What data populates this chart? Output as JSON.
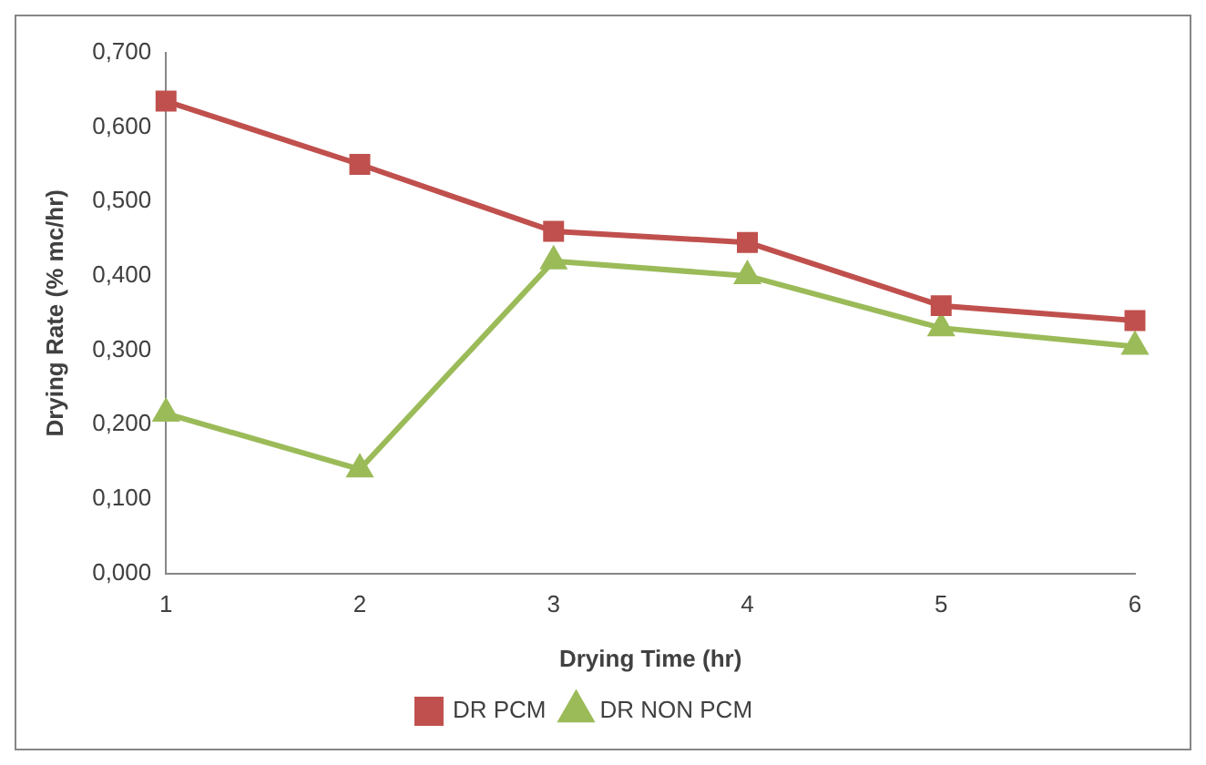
{
  "chart_data": {
    "type": "line",
    "xlabel": "Drying Time (hr)",
    "ylabel": "Drying Rate (% mc/hr)",
    "categories": [
      "1",
      "2",
      "3",
      "4",
      "5",
      "6"
    ],
    "series": [
      {
        "name": "DR PCM",
        "color": "#c0504d",
        "marker": "square",
        "values": [
          0.635,
          0.55,
          0.46,
          0.445,
          0.36,
          0.34
        ]
      },
      {
        "name": "DR NON PCM",
        "color": "#9bbb59",
        "marker": "triangle",
        "values": [
          0.215,
          0.14,
          0.42,
          0.4,
          0.33,
          0.305
        ]
      }
    ],
    "ylim": [
      0,
      0.7
    ],
    "yticks": [
      {
        "value": 0,
        "label": "0,000"
      },
      {
        "value": 0.1,
        "label": "0,100"
      },
      {
        "value": 0.2,
        "label": "0,200"
      },
      {
        "value": 0.3,
        "label": "0,300"
      },
      {
        "value": 0.4,
        "label": "0,400"
      },
      {
        "value": 0.5,
        "label": "0,500"
      },
      {
        "value": 0.6,
        "label": "0,600"
      },
      {
        "value": 0.7,
        "label": "0,700"
      }
    ],
    "grid": false,
    "legend": "bottom",
    "line_style": "solid"
  }
}
